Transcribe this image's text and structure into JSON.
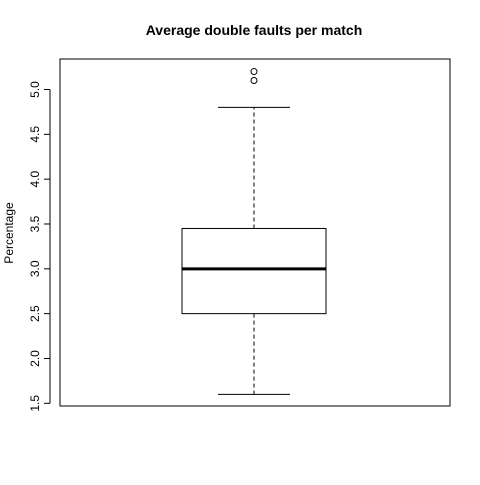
{
  "chart_data": {
    "type": "box",
    "title": "Average double faults per match",
    "xlabel": "",
    "ylabel": "Percentage",
    "ylim": [
      1.47,
      5.34
    ],
    "yticks": [
      {
        "value": 1.5,
        "label": "1.5"
      },
      {
        "value": 2.0,
        "label": "2.0"
      },
      {
        "value": 2.5,
        "label": "2.5"
      },
      {
        "value": 3.0,
        "label": "3.0"
      },
      {
        "value": 3.5,
        "label": "3.5"
      },
      {
        "value": 4.0,
        "label": "4.0"
      },
      {
        "value": 4.5,
        "label": "4.5"
      },
      {
        "value": 5.0,
        "label": "5.0"
      }
    ],
    "box": {
      "whisker_low": 1.6,
      "q1": 2.5,
      "median": 3.0,
      "q3": 3.45,
      "whisker_high": 4.8,
      "outliers": [
        5.1,
        5.2
      ]
    },
    "grid": false
  }
}
